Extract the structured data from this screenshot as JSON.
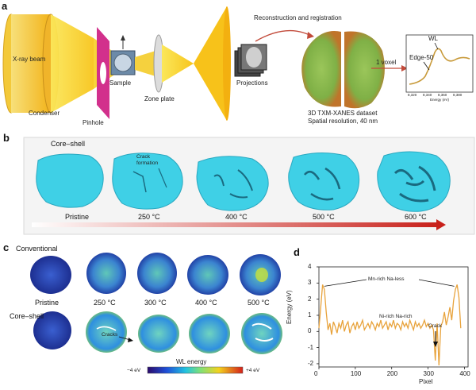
{
  "panel_a": {
    "letter": "a",
    "xray_beam": "X-ray beam",
    "condenser": "Condenser",
    "pinhole": "Pinhole",
    "sample": "Sample",
    "zone_plate": "Zone plate",
    "recon": "Reconstruction and registration",
    "projections": "Projections",
    "voxel": "1 voxel",
    "dataset": "3D TXM-XANES dataset",
    "resolution": "Spatial resolution, 40 nm",
    "inset": {
      "wl": "WL",
      "edge": "Edge-50",
      "ticks": [
        "8,320",
        "8,340",
        "8,360",
        "8,380"
      ],
      "xlabel": "Energy (eV)"
    }
  },
  "panel_b": {
    "letter": "b",
    "core_shell": "Core–shell",
    "crack": "Crack formation",
    "labels": [
      "Pristine",
      "250 °C",
      "400 °C",
      "500 °C",
      "600 °C"
    ]
  },
  "panel_c": {
    "letter": "c",
    "conventional": "Conventional",
    "core_shell": "Core–shell",
    "labels": [
      "Pristine",
      "250 °C",
      "300 °C",
      "400 °C",
      "500 °C"
    ],
    "cracks": "Cracks",
    "colorbar_title": "WL energy",
    "colorbar_min": "−4 eV",
    "colorbar_max": "+4 eV"
  },
  "panel_d": {
    "letter": "d",
    "chart_data": {
      "type": "line",
      "xlabel": "Pixel",
      "ylabel": "Energy (eV)",
      "xlim": [
        0,
        410
      ],
      "ylim": [
        -2.2,
        4
      ],
      "xticks": [
        0,
        100,
        200,
        300,
        400
      ],
      "yticks": [
        -2,
        -1,
        0,
        1,
        2,
        3,
        4
      ],
      "annotations": [
        "Mn-rich Na-less",
        "Ni-rich Na-rich",
        "Crack"
      ],
      "series": [
        {
          "color": "#e8a33c",
          "x": [
            0,
            5,
            10,
            15,
            20,
            25,
            30,
            35,
            40,
            45,
            50,
            55,
            60,
            65,
            70,
            75,
            80,
            85,
            90,
            95,
            100,
            105,
            110,
            115,
            120,
            125,
            130,
            135,
            140,
            145,
            150,
            155,
            160,
            165,
            170,
            175,
            180,
            185,
            190,
            195,
            200,
            205,
            210,
            215,
            220,
            225,
            230,
            235,
            240,
            245,
            250,
            255,
            260,
            265,
            270,
            275,
            280,
            285,
            290,
            295,
            300,
            305,
            310,
            315,
            320,
            325,
            330,
            335,
            340,
            345,
            350,
            355,
            360,
            365,
            370,
            375,
            380,
            385,
            390
          ],
          "y": [
            0.2,
            1.5,
            2.9,
            2.6,
            1.2,
            0.1,
            0.5,
            -0.2,
            0.6,
            0.3,
            -0.1,
            0.5,
            0.2,
            0.7,
            0.0,
            0.4,
            0.6,
            -0.1,
            0.3,
            0.5,
            0.1,
            0.6,
            0.2,
            0.4,
            0.7,
            0.1,
            0.3,
            0.5,
            0.2,
            0.6,
            0.4,
            0.1,
            0.5,
            0.3,
            0.7,
            0.2,
            0.4,
            0.6,
            0.1,
            0.5,
            0.3,
            0.7,
            0.2,
            0.5,
            0.4,
            0.1,
            0.6,
            0.3,
            0.5,
            0.2,
            0.7,
            0.4,
            0.1,
            0.6,
            0.3,
            0.5,
            0.2,
            0.4,
            0.7,
            0.3,
            0.5,
            0.2,
            0.4,
            0.1,
            -1.8,
            0.5,
            -2.1,
            0.3,
            0.6,
            1.2,
            0.4,
            0.9,
            1.5,
            0.7,
            1.9,
            2.6,
            2.9,
            2.1,
            0.2
          ]
        }
      ]
    }
  }
}
